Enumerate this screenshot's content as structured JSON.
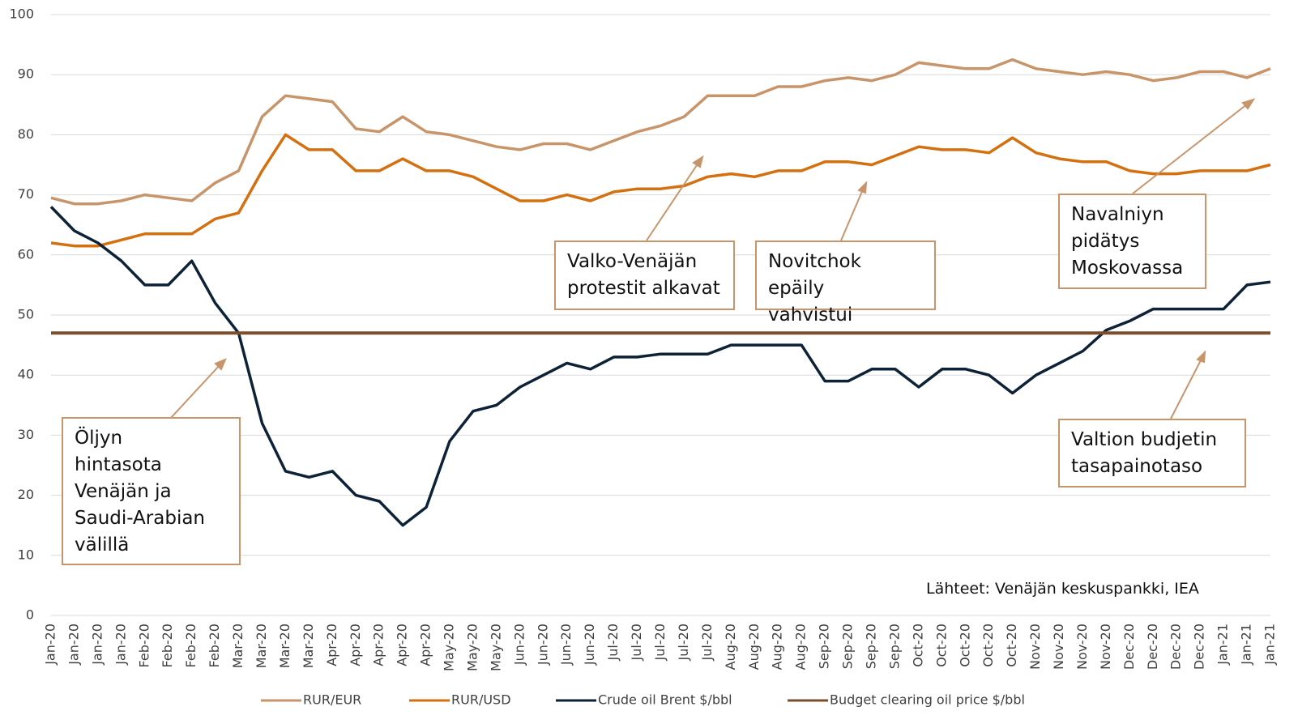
{
  "chart_data": {
    "type": "line",
    "categories": [
      "Jan-20",
      "Jan-20",
      "Jan-20",
      "Jan-20",
      "Feb-20",
      "Feb-20",
      "Feb-20",
      "Feb-20",
      "Mar-20",
      "Mar-20",
      "Mar-20",
      "Mar-20",
      "Apr-20",
      "Apr-20",
      "Apr-20",
      "Apr-20",
      "Apr-20",
      "May-20",
      "May-20",
      "May-20",
      "Jun-20",
      "Jun-20",
      "Jun-20",
      "Jun-20",
      "Jul-20",
      "Jul-20",
      "Jul-20",
      "Jul-20",
      "Jul-20",
      "Aug-20",
      "Aug-20",
      "Aug-20",
      "Aug-20",
      "Sep-20",
      "Sep-20",
      "Sep-20",
      "Sep-20",
      "Oct-20",
      "Oct-20",
      "Oct-20",
      "Oct-20",
      "Oct-20",
      "Nov-20",
      "Nov-20",
      "Nov-20",
      "Nov-20",
      "Dec-20",
      "Dec-20",
      "Dec-20",
      "Dec-20",
      "Jan-21",
      "Jan-21",
      "Jan-21"
    ],
    "series": [
      {
        "name": "RUR/EUR",
        "color": "#c8956b",
        "values": [
          69.5,
          68.5,
          68.5,
          69,
          70,
          69.5,
          69,
          72,
          74,
          83,
          86.5,
          86,
          85.5,
          81,
          80.5,
          83,
          80.5,
          80,
          79,
          78,
          77.5,
          78.5,
          78.5,
          77.5,
          79,
          80.5,
          81.5,
          83,
          86.5,
          86.5,
          86.5,
          88,
          88,
          89,
          89.5,
          89,
          90,
          92,
          91.5,
          91,
          91,
          92.5,
          91,
          90.5,
          90,
          90.5,
          90,
          89,
          89.5,
          90.5,
          90.5,
          89.5,
          91
        ]
      },
      {
        "name": "RUR/USD",
        "color": "#d4700f",
        "values": [
          62,
          61.5,
          61.5,
          62.5,
          63.5,
          63.5,
          63.5,
          66,
          67,
          74,
          80,
          77.5,
          77.5,
          74,
          74,
          76,
          74,
          74,
          73,
          71,
          69,
          69,
          70,
          69,
          70.5,
          71,
          71,
          71.5,
          73,
          73.5,
          73,
          74,
          74,
          75.5,
          75.5,
          75,
          76.5,
          78,
          77.5,
          77.5,
          77,
          79.5,
          77,
          76,
          75.5,
          75.5,
          74,
          73.5,
          73.5,
          74,
          74,
          74,
          75
        ]
      },
      {
        "name": "Crude oil Brent $/bbl",
        "color": "#0d2237",
        "values": [
          68,
          64,
          62,
          59,
          55,
          55,
          59,
          52,
          47,
          32,
          24,
          23,
          24,
          20,
          19,
          15,
          18,
          29,
          34,
          35,
          38,
          40,
          42,
          41,
          43,
          43,
          43.5,
          43.5,
          43.5,
          45,
          45,
          45,
          45,
          39,
          39,
          41,
          41,
          38,
          41,
          41,
          40,
          37,
          40,
          42,
          44,
          47.5,
          49,
          51,
          51,
          51,
          51,
          55,
          55.5
        ]
      },
      {
        "name": "Budget clearing oil price $/bbl",
        "color": "#7b4f2c",
        "values": [
          47,
          47,
          47,
          47,
          47,
          47,
          47,
          47,
          47,
          47,
          47,
          47,
          47,
          47,
          47,
          47,
          47,
          47,
          47,
          47,
          47,
          47,
          47,
          47,
          47,
          47,
          47,
          47,
          47,
          47,
          47,
          47,
          47,
          47,
          47,
          47,
          47,
          47,
          47,
          47,
          47,
          47,
          47,
          47,
          47,
          47,
          47,
          47,
          47,
          47,
          47,
          47,
          47
        ]
      }
    ],
    "ylim": [
      0,
      100
    ],
    "yticks": [
      0,
      10,
      20,
      30,
      40,
      50,
      60,
      70,
      80,
      90,
      100
    ],
    "grid": true,
    "annotations": [
      "Öljyn\nhintasota\nVenäjän ja\nSaudi-Arabian\nvälillä",
      "Valko-Venäjän\nprotestit alkavat",
      "Novitchok epäily\nvahvistui",
      "Navalniyn\npidätys\nMoskovassa",
      "Valtion budjetin\ntasapainotaso"
    ],
    "source": "Lähteet: Venäjän keskuspankki, IEA"
  }
}
